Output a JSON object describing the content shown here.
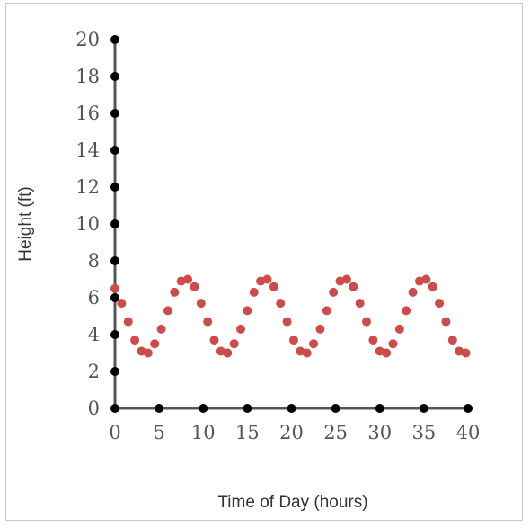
{
  "chart_data": {
    "type": "scatter",
    "title": "",
    "xlabel": "Time of Day (hours)",
    "ylabel": "Height (ft)",
    "xlim": [
      0,
      40
    ],
    "ylim": [
      0,
      20
    ],
    "x_ticks": [
      "0",
      "5",
      "10",
      "15",
      "20",
      "25",
      "30",
      "35",
      "40"
    ],
    "y_ticks": [
      "0",
      "2",
      "4",
      "6",
      "8",
      "10",
      "12",
      "14",
      "16",
      "18",
      "20"
    ],
    "grid": false,
    "colors": {
      "points": "#cc4b4b",
      "axis": "#555555",
      "tick_dots": "#000000"
    },
    "series": [
      {
        "x": [
          0,
          0.75,
          1.5,
          2.25,
          3,
          3.75,
          4.5,
          5.25,
          6,
          6.75,
          7.5,
          8.25,
          9,
          9.75,
          10.5,
          11.25,
          12,
          12.75,
          13.5,
          14.25,
          15,
          15.75,
          16.5,
          17.25,
          18,
          18.75,
          19.5,
          20.25,
          21,
          21.75,
          22.5,
          23.25,
          24,
          24.75,
          25.5,
          26.25,
          27,
          27.75,
          28.5,
          29.25,
          30,
          30.75,
          31.5,
          32.25,
          33,
          33.75,
          34.5,
          35.25,
          36,
          36.75,
          37.5,
          38.25,
          39,
          39.75
        ],
        "y": [
          6.5,
          5.7,
          4.7,
          3.7,
          3.1,
          3.0,
          3.5,
          4.3,
          5.3,
          6.3,
          6.9,
          7.0,
          6.6,
          5.7,
          4.7,
          3.7,
          3.1,
          3.0,
          3.5,
          4.3,
          5.3,
          6.3,
          6.9,
          7.0,
          6.6,
          5.7,
          4.7,
          3.7,
          3.1,
          3.0,
          3.5,
          4.3,
          5.3,
          6.3,
          6.9,
          7.0,
          6.6,
          5.7,
          4.7,
          3.7,
          3.1,
          3.0,
          3.5,
          4.3,
          5.3,
          6.3,
          6.9,
          7.0,
          6.6,
          5.7,
          4.7,
          3.7,
          3.1,
          3.0
        ]
      }
    ]
  }
}
